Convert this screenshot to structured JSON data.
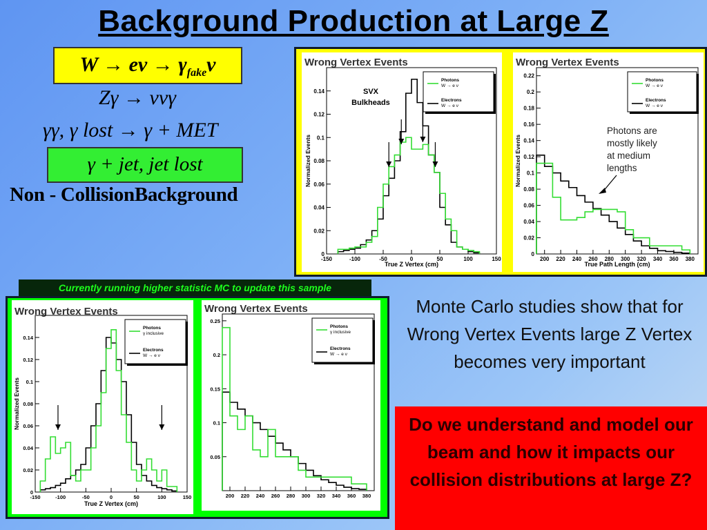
{
  "slide_title": "Background Production at Large Z",
  "formulas": {
    "f1": "W → eν → γ",
    "f1_sub": "fake",
    "f1_tail": "ν",
    "f2": "Zγ → ννγ",
    "f3": "γγ, γ lost → γ + MET",
    "f4": "γ + jet, jet lost",
    "f5": "Non - CollisionBackground"
  },
  "colors": {
    "yellow_box": "#ffff00",
    "green_box": "#33ee33",
    "panel_green": "#00ff00",
    "panel_dark": "#0f1c2e",
    "question_bg": "#ff0000"
  },
  "note_text": "Currently running higher statistic MC to update this sample",
  "body_text": "Monte Carlo studies show that for Wrong Vertex Events large Z Vertex becomes very important",
  "question_text": "Do we understand and model our beam and how it impacts our collision distributions at large Z?",
  "chart_data": [
    {
      "type": "step",
      "title": "Wrong Vertex Events",
      "xlabel": "True Z Vertex (cm)",
      "ylabel": "Normalized Events",
      "xlim": [
        -150,
        150
      ],
      "ylim": [
        0,
        0.16
      ],
      "xticks": [
        "-150",
        "-100",
        "-50",
        "0",
        "50",
        "100",
        "150"
      ],
      "yticks": [
        "0",
        "0.02",
        "0.04",
        "0.06",
        "0.08",
        "0.1",
        "0.12",
        "0.14"
      ],
      "legend": [
        {
          "name": "Photons",
          "sub": "W → e ν",
          "color": "#33dd33"
        },
        {
          "name": "Electrons",
          "sub": "W → e ν",
          "color": "#000000"
        }
      ],
      "annotation": "SVX Bulkheads",
      "arrows_x": [
        -40,
        -18,
        20,
        42
      ],
      "bin_edges": [
        -130,
        -120,
        -110,
        -100,
        -90,
        -80,
        -70,
        -60,
        -50,
        -40,
        -30,
        -20,
        -10,
        0,
        10,
        20,
        30,
        40,
        50,
        60,
        70,
        80,
        90,
        100,
        110,
        120
      ],
      "series": [
        {
          "name": "Electrons",
          "color": "#000000",
          "values": [
            0.002,
            0.003,
            0.004,
            0.005,
            0.008,
            0.012,
            0.02,
            0.03,
            0.05,
            0.065,
            0.08,
            0.105,
            0.138,
            0.15,
            0.13,
            0.11,
            0.085,
            0.07,
            0.04,
            0.025,
            0.01,
            0.006,
            0.004,
            0.002,
            0.001
          ]
        },
        {
          "name": "Photons",
          "color": "#33dd33",
          "values": [
            0.004,
            0.004,
            0.005,
            0.006,
            0.006,
            0.01,
            0.015,
            0.04,
            0.06,
            0.075,
            0.085,
            0.096,
            0.1,
            0.09,
            0.09,
            0.094,
            0.085,
            0.07,
            0.052,
            0.03,
            0.02,
            0.006,
            0.004,
            0.003,
            0.002
          ]
        }
      ]
    },
    {
      "type": "step",
      "title": "Wrong Vertex Events",
      "xlabel": "True Path Length (cm)",
      "ylabel": "Normalized Events",
      "xlim": [
        190,
        390
      ],
      "ylim": [
        0,
        0.23
      ],
      "xticks": [
        "200",
        "220",
        "240",
        "260",
        "280",
        "300",
        "320",
        "340",
        "360",
        "380"
      ],
      "yticks": [
        "0",
        "0.02",
        "0.04",
        "0.06",
        "0.08",
        "0.1",
        "0.12",
        "0.14",
        "0.16",
        "0.18",
        "0.2",
        "0.22"
      ],
      "legend": [
        {
          "name": "Photons",
          "sub": "W → e ν",
          "color": "#33dd33"
        },
        {
          "name": "Electrons",
          "sub": "W → e ν",
          "color": "#000000"
        }
      ],
      "annotation": "Photons are mostly likely at medium lengths",
      "bin_edges": [
        190,
        200,
        210,
        220,
        230,
        240,
        250,
        260,
        270,
        280,
        290,
        300,
        310,
        320,
        330,
        340,
        350,
        360,
        370,
        380
      ],
      "series": [
        {
          "name": "Electrons",
          "color": "#000000",
          "values": [
            0.122,
            0.108,
            0.1,
            0.09,
            0.082,
            0.072,
            0.064,
            0.056,
            0.048,
            0.04,
            0.032,
            0.024,
            0.016,
            0.01,
            0.007,
            0.004,
            0.003,
            0.002,
            0.001
          ]
        },
        {
          "name": "Photons",
          "color": "#33dd33",
          "values": [
            0.112,
            0.112,
            0.07,
            0.042,
            0.042,
            0.045,
            0.052,
            0.055,
            0.055,
            0.055,
            0.052,
            0.03,
            0.02,
            0.02,
            0.01,
            0.01,
            0.01,
            0.01,
            0.005
          ]
        }
      ]
    },
    {
      "type": "step",
      "title": "Wrong Vertex Events",
      "xlabel": "True Z Vertex (cm)",
      "ylabel": "Normalized Events",
      "xlim": [
        -150,
        150
      ],
      "ylim": [
        0,
        0.16
      ],
      "xticks": [
        "-150",
        "-100",
        "-50",
        "0",
        "50",
        "100",
        "150"
      ],
      "yticks": [
        "0",
        "0.02",
        "0.04",
        "0.06",
        "0.08",
        "0.1",
        "0.12",
        "0.14"
      ],
      "legend": [
        {
          "name": "Photons",
          "sub": "γ inclusive",
          "color": "#33dd33"
        },
        {
          "name": "Electrons",
          "sub": "W → e ν",
          "color": "#000000"
        }
      ],
      "arrows_x": [
        -105,
        100
      ],
      "bin_edges": [
        -140,
        -130,
        -120,
        -110,
        -100,
        -90,
        -80,
        -70,
        -60,
        -50,
        -40,
        -30,
        -20,
        -10,
        0,
        10,
        20,
        30,
        40,
        50,
        60,
        70,
        80,
        90,
        100,
        110,
        120,
        130
      ],
      "series": [
        {
          "name": "Electrons",
          "color": "#000000",
          "values": [
            0.002,
            0.003,
            0.004,
            0.006,
            0.008,
            0.012,
            0.015,
            0.02,
            0.025,
            0.04,
            0.06,
            0.08,
            0.11,
            0.14,
            0.135,
            0.12,
            0.1,
            0.07,
            0.045,
            0.025,
            0.015,
            0.01,
            0.006,
            0.004,
            0.003,
            0.002,
            0.001
          ]
        },
        {
          "name": "Photons",
          "color": "#33dd33",
          "values": [
            0.01,
            0.03,
            0.05,
            0.035,
            0.04,
            0.045,
            0.015,
            0.01,
            0.02,
            0.02,
            0.04,
            0.06,
            0.09,
            0.13,
            0.147,
            0.11,
            0.07,
            0.045,
            0.02,
            0.01,
            0.02,
            0.03,
            0.02,
            0.01,
            0.02,
            0.005,
            0.005
          ]
        }
      ]
    },
    {
      "type": "step",
      "title": "Wrong Vertex Events",
      "xlabel": "",
      "ylabel": "",
      "xlim": [
        190,
        390
      ],
      "ylim": [
        0,
        0.26
      ],
      "xticks": [
        "200",
        "220",
        "240",
        "260",
        "280",
        "300",
        "320",
        "340",
        "360",
        "380"
      ],
      "yticks": [
        "0.05",
        "0.1",
        "0.15",
        "0.2",
        "0.25"
      ],
      "legend": [
        {
          "name": "Photons",
          "sub": "γ inclusive",
          "color": "#33dd33"
        },
        {
          "name": "Electrons",
          "sub": "W → e ν",
          "color": "#000000"
        }
      ],
      "bin_edges": [
        190,
        200,
        210,
        220,
        230,
        240,
        250,
        260,
        270,
        280,
        290,
        300,
        310,
        320,
        330,
        340,
        350,
        360,
        370,
        380
      ],
      "series": [
        {
          "name": "Electrons",
          "color": "#000000",
          "values": [
            0.145,
            0.13,
            0.12,
            0.11,
            0.1,
            0.09,
            0.08,
            0.07,
            0.06,
            0.05,
            0.04,
            0.03,
            0.022,
            0.016,
            0.012,
            0.008,
            0.005,
            0.003,
            0.002
          ]
        },
        {
          "name": "Photons",
          "color": "#33dd33",
          "values": [
            0.24,
            0.11,
            0.09,
            0.11,
            0.06,
            0.05,
            0.09,
            0.05,
            0.05,
            0.05,
            0.03,
            0.02,
            0.02,
            0.02,
            0.02,
            0.02,
            0.02,
            0.01,
            0.01
          ]
        }
      ]
    }
  ]
}
